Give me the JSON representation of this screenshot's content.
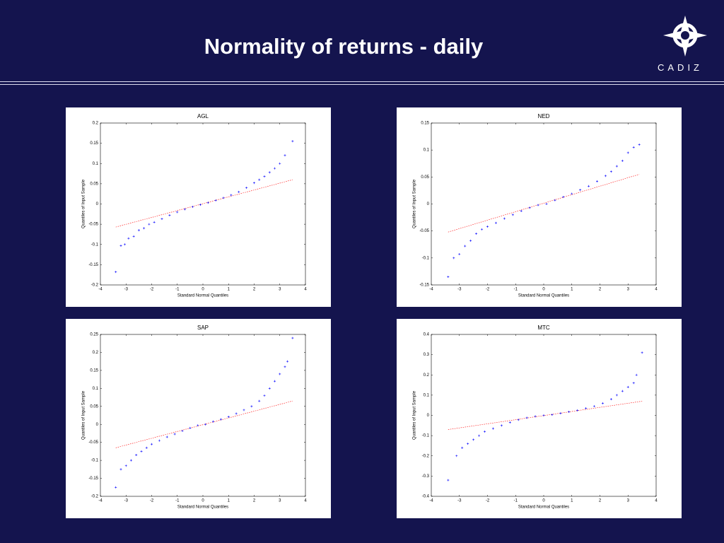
{
  "slide": {
    "title": "Normality of returns - daily",
    "logo": "CADIZ"
  },
  "chart_data": [
    {
      "type": "scatter",
      "title": "AGL",
      "xlabel": "Standard Normal Quantiles",
      "ylabel": "Quantiles of Input Sample",
      "xlim": [
        -4,
        4
      ],
      "xticks": [
        -4,
        -3,
        -2,
        -1,
        0,
        1,
        2,
        3,
        4
      ],
      "ylim": [
        -0.2,
        0.2
      ],
      "yticks": [
        -0.2,
        -0.15,
        -0.1,
        -0.05,
        0,
        0.05,
        0.1,
        0.15,
        0.2
      ],
      "color": "#0000ff",
      "x": [
        -3.4,
        -3.2,
        -3.05,
        -2.9,
        -2.7,
        -2.5,
        -2.3,
        -2.1,
        -1.9,
        -1.6,
        -1.3,
        -1.0,
        -0.7,
        -0.4,
        -0.1,
        0.2,
        0.5,
        0.8,
        1.1,
        1.4,
        1.7,
        2.0,
        2.2,
        2.4,
        2.6,
        2.8,
        3.0,
        3.2,
        3.5
      ],
      "values": [
        -0.168,
        -0.103,
        -0.1,
        -0.085,
        -0.08,
        -0.065,
        -0.06,
        -0.05,
        -0.045,
        -0.037,
        -0.028,
        -0.02,
        -0.013,
        -0.007,
        -0.002,
        0.003,
        0.009,
        0.015,
        0.022,
        0.03,
        0.04,
        0.052,
        0.06,
        0.068,
        0.078,
        0.088,
        0.1,
        0.12,
        0.155
      ],
      "ref_line": {
        "color": "#ff0000",
        "x": [
          -3.4,
          3.5
        ],
        "values": [
          -0.057,
          0.06
        ]
      }
    },
    {
      "type": "scatter",
      "title": "NED",
      "xlabel": "Standard Normal Quantiles",
      "ylabel": "Quantiles of Input Sample",
      "xlim": [
        -4,
        4
      ],
      "xticks": [
        -4,
        -3,
        -2,
        -1,
        0,
        1,
        2,
        3,
        4
      ],
      "ylim": [
        -0.15,
        0.15
      ],
      "yticks": [
        -0.15,
        -0.1,
        -0.05,
        0,
        0.05,
        0.1,
        0.15
      ],
      "color": "#0000ff",
      "x": [
        -3.4,
        -3.2,
        -3.0,
        -2.8,
        -2.6,
        -2.4,
        -2.2,
        -2.0,
        -1.7,
        -1.4,
        -1.1,
        -0.8,
        -0.5,
        -0.2,
        0.1,
        0.4,
        0.7,
        1.0,
        1.3,
        1.6,
        1.9,
        2.2,
        2.4,
        2.6,
        2.8,
        3.0,
        3.2,
        3.4
      ],
      "values": [
        -0.135,
        -0.1,
        -0.093,
        -0.078,
        -0.068,
        -0.055,
        -0.047,
        -0.042,
        -0.035,
        -0.027,
        -0.02,
        -0.013,
        -0.007,
        -0.002,
        0.0,
        0.007,
        0.013,
        0.019,
        0.026,
        0.033,
        0.042,
        0.052,
        0.06,
        0.07,
        0.08,
        0.095,
        0.105,
        0.11
      ],
      "ref_line": {
        "color": "#ff0000",
        "x": [
          -3.4,
          3.4
        ],
        "values": [
          -0.052,
          0.055
        ]
      }
    },
    {
      "type": "scatter",
      "title": "SAP",
      "xlabel": "Standard Normal Quantiles",
      "ylabel": "Quantiles of Input Sample",
      "xlim": [
        -4,
        4
      ],
      "xticks": [
        -4,
        -3,
        -2,
        -1,
        0,
        1,
        2,
        3,
        4
      ],
      "ylim": [
        -0.2,
        0.25
      ],
      "yticks": [
        -0.2,
        -0.15,
        -0.1,
        -0.05,
        0,
        0.05,
        0.1,
        0.15,
        0.2,
        0.25
      ],
      "color": "#0000ff",
      "x": [
        -3.4,
        -3.2,
        -3.0,
        -2.8,
        -2.6,
        -2.4,
        -2.2,
        -2.0,
        -1.7,
        -1.4,
        -1.1,
        -0.8,
        -0.5,
        -0.2,
        0.1,
        0.4,
        0.7,
        1.0,
        1.3,
        1.6,
        1.9,
        2.2,
        2.4,
        2.6,
        2.8,
        3.0,
        3.2,
        3.3,
        3.5
      ],
      "values": [
        -0.175,
        -0.125,
        -0.115,
        -0.1,
        -0.085,
        -0.075,
        -0.065,
        -0.055,
        -0.045,
        -0.035,
        -0.027,
        -0.018,
        -0.01,
        -0.003,
        0.0,
        0.008,
        0.014,
        0.021,
        0.03,
        0.04,
        0.05,
        0.065,
        0.08,
        0.1,
        0.12,
        0.14,
        0.16,
        0.175,
        0.24
      ],
      "ref_line": {
        "color": "#ff0000",
        "x": [
          -3.4,
          3.5
        ],
        "values": [
          -0.065,
          0.065
        ]
      }
    },
    {
      "type": "scatter",
      "title": "MTC",
      "xlabel": "Standard Normal Quantiles",
      "ylabel": "Quantiles of Input Sample",
      "xlim": [
        -4,
        4
      ],
      "xticks": [
        -4,
        -3,
        -2,
        -1,
        0,
        1,
        2,
        3,
        4
      ],
      "ylim": [
        -0.4,
        0.4
      ],
      "yticks": [
        -0.4,
        -0.3,
        -0.2,
        -0.1,
        0,
        0.1,
        0.2,
        0.3,
        0.4
      ],
      "color": "#0000ff",
      "x": [
        -3.4,
        -3.1,
        -2.9,
        -2.7,
        -2.5,
        -2.3,
        -2.1,
        -1.8,
        -1.5,
        -1.2,
        -0.9,
        -0.6,
        -0.3,
        0.0,
        0.3,
        0.6,
        0.9,
        1.2,
        1.5,
        1.8,
        2.1,
        2.4,
        2.6,
        2.8,
        3.0,
        3.2,
        3.3,
        3.5
      ],
      "values": [
        -0.32,
        -0.2,
        -0.16,
        -0.14,
        -0.12,
        -0.1,
        -0.08,
        -0.065,
        -0.05,
        -0.035,
        -0.022,
        -0.012,
        -0.005,
        0.0,
        0.003,
        0.01,
        0.018,
        0.025,
        0.035,
        0.045,
        0.06,
        0.08,
        0.1,
        0.12,
        0.14,
        0.16,
        0.2,
        0.31
      ],
      "ref_line": {
        "color": "#ff0000",
        "x": [
          -3.4,
          3.5
        ],
        "values": [
          -0.07,
          0.07
        ]
      }
    }
  ]
}
